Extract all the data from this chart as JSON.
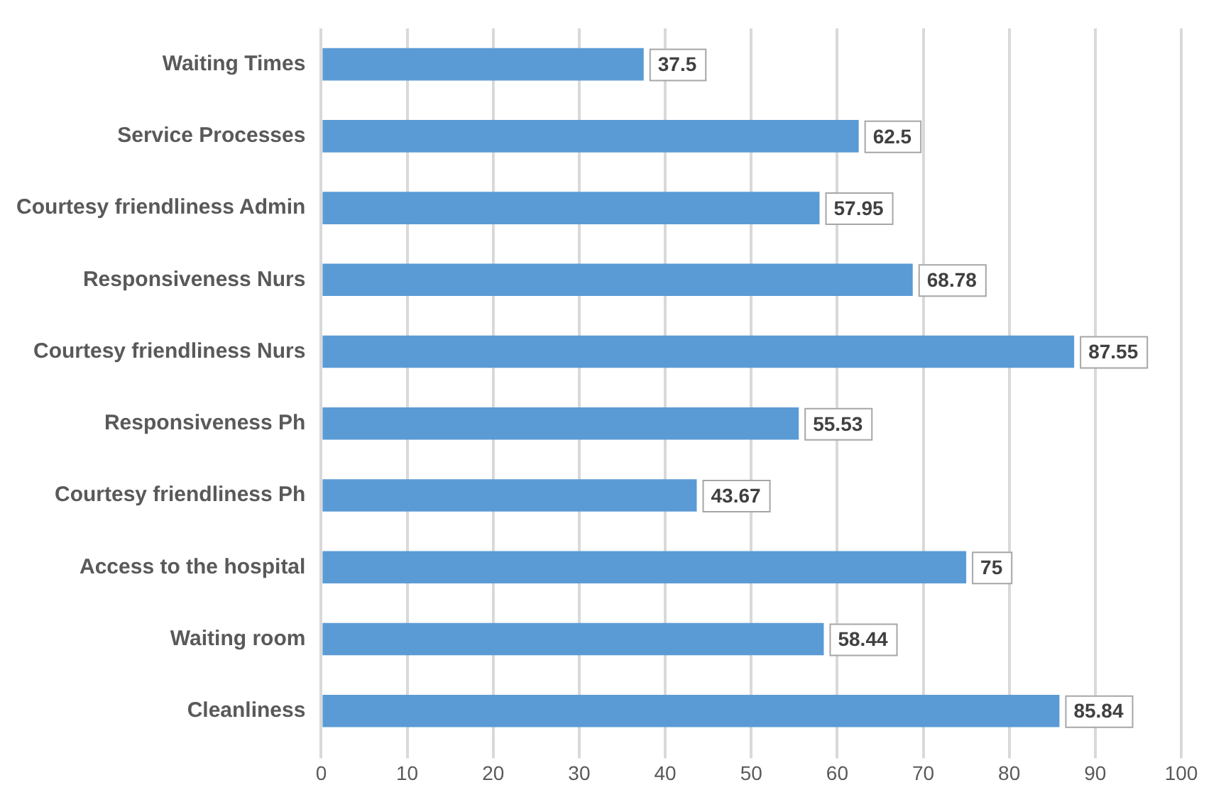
{
  "chart_data": {
    "type": "bar",
    "orientation": "horizontal",
    "categories": [
      "Waiting Times",
      "Service Processes",
      "Courtesy friendliness Admin",
      "Responsiveness Nurs",
      "Courtesy friendliness Nurs",
      "Responsiveness Ph",
      "Courtesy friendliness Ph",
      "Access to the hospital",
      "Waiting room",
      "Cleanliness"
    ],
    "values": [
      37.5,
      62.5,
      57.95,
      68.78,
      87.55,
      55.53,
      43.67,
      75,
      58.44,
      85.84
    ],
    "color": "#5b9bd5",
    "xlim": [
      0,
      100
    ],
    "xticks": [
      0,
      10,
      20,
      30,
      40,
      50,
      60,
      70,
      80,
      90,
      100
    ],
    "grid": "x",
    "data_labels": true
  }
}
